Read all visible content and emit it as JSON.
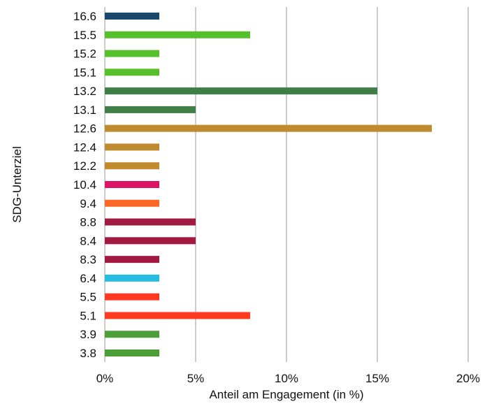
{
  "chart_data": {
    "type": "bar",
    "orientation": "horizontal",
    "title": "",
    "xlabel": "Anteil am Engagement (in %)",
    "ylabel": "SDG-Unterziel",
    "xlim": [
      0,
      20
    ],
    "x_ticks": [
      0,
      5,
      10,
      15,
      20
    ],
    "x_tick_labels": [
      "0%",
      "5%",
      "10%",
      "15%",
      "20%"
    ],
    "grid": "vertical",
    "legend": "none",
    "categories": [
      "16.6",
      "15.5",
      "15.2",
      "15.1",
      "13.2",
      "13.1",
      "12.6",
      "12.4",
      "12.2",
      "10.4",
      "9.4",
      "8.8",
      "8.4",
      "8.3",
      "6.4",
      "5.5",
      "5.1",
      "3.9",
      "3.8"
    ],
    "values": [
      3,
      8,
      3,
      3,
      15,
      5,
      18,
      3,
      3,
      3,
      3,
      5,
      5,
      3,
      3,
      3,
      8,
      3,
      3
    ],
    "colors": [
      "#19486A",
      "#56C02B",
      "#56C02B",
      "#56C02B",
      "#3F7E44",
      "#3F7E44",
      "#BF8B2E",
      "#BF8B2E",
      "#BF8B2E",
      "#DD1367",
      "#FD6925",
      "#A21942",
      "#A21942",
      "#A21942",
      "#26BDE2",
      "#FF3A21",
      "#FF3A21",
      "#4C9F38",
      "#4C9F38"
    ]
  }
}
